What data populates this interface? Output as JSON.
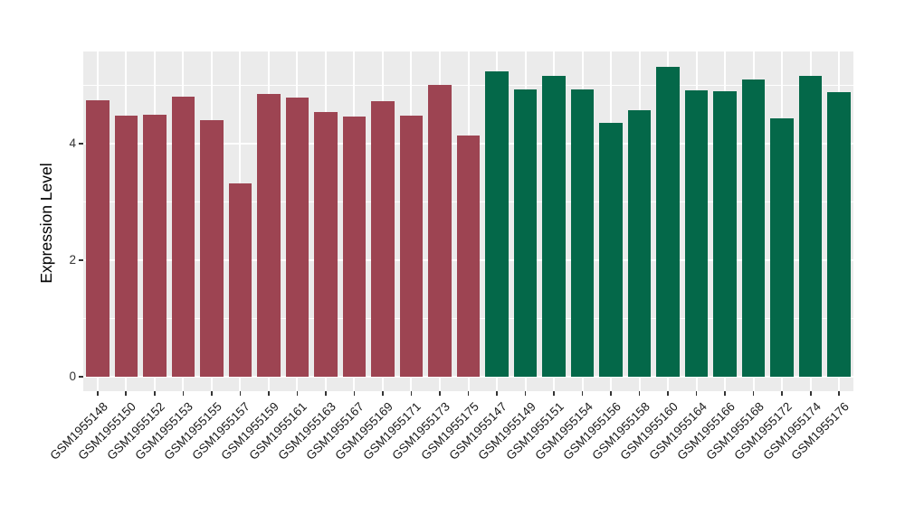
{
  "chart_data": {
    "type": "bar",
    "title": "",
    "xlabel": "",
    "ylabel": "Expression Level",
    "categories": [
      "GSM1955148",
      "GSM1955150",
      "GSM1955152",
      "GSM1955153",
      "GSM1955155",
      "GSM1955157",
      "GSM1955159",
      "GSM1955161",
      "GSM1955163",
      "GSM1955167",
      "GSM1955169",
      "GSM1955171",
      "GSM1955173",
      "GSM1955175",
      "GSM1955147",
      "GSM1955149",
      "GSM1955151",
      "GSM1955154",
      "GSM1955156",
      "GSM1955158",
      "GSM1955160",
      "GSM1955164",
      "GSM1955166",
      "GSM1955168",
      "GSM1955172",
      "GSM1955174",
      "GSM1955176"
    ],
    "values": [
      4.74,
      4.48,
      4.5,
      4.81,
      4.41,
      3.32,
      4.85,
      4.79,
      4.54,
      4.46,
      4.73,
      4.48,
      5.01,
      4.14,
      5.24,
      4.93,
      5.16,
      4.93,
      4.35,
      4.58,
      5.32,
      4.91,
      4.9,
      5.1,
      4.44,
      5.17,
      4.88
    ],
    "groups": [
      "maroon",
      "maroon",
      "maroon",
      "maroon",
      "maroon",
      "maroon",
      "maroon",
      "maroon",
      "maroon",
      "maroon",
      "maroon",
      "maroon",
      "maroon",
      "maroon",
      "green",
      "green",
      "green",
      "green",
      "green",
      "green",
      "green",
      "green",
      "green",
      "green",
      "green",
      "green",
      "green"
    ],
    "group_colors": {
      "maroon": "#9D4452",
      "green": "#046849"
    },
    "yticks": [
      0,
      2,
      4
    ],
    "minor_gridlines": [
      1,
      3,
      5
    ],
    "ylim": [
      -0.25,
      5.58
    ],
    "panel_bg": "#EBEBEB",
    "grid_color": "#FFFFFF",
    "axis_text_color": "#333333",
    "legend": "none",
    "grid": "major white 0/2/4, minor white 1/3/5, vertical white at bar centers"
  }
}
